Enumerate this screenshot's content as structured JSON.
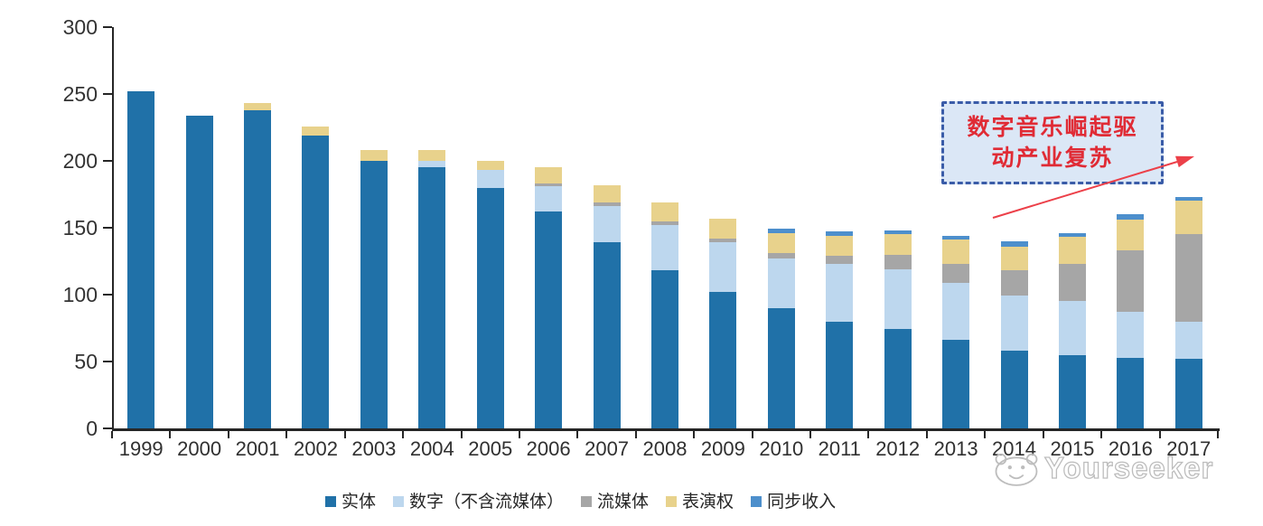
{
  "chart_data": {
    "type": "bar",
    "stacked": true,
    "title": "",
    "xlabel": "",
    "ylabel": "",
    "ylim": [
      0,
      300
    ],
    "yticks": [
      0,
      50,
      100,
      150,
      200,
      250,
      300
    ],
    "grid": false,
    "legend_position": "bottom",
    "categories": [
      "1999",
      "2000",
      "2001",
      "2002",
      "2003",
      "2004",
      "2005",
      "2006",
      "2007",
      "2008",
      "2009",
      "2010",
      "2011",
      "2012",
      "2013",
      "2014",
      "2015",
      "2016",
      "2017"
    ],
    "series": [
      {
        "key": "physical",
        "name": "实体",
        "color": "#2071a8",
        "values": [
          252,
          234,
          238,
          219,
          200,
          195,
          180,
          162,
          139,
          118,
          102,
          90,
          80,
          74,
          66,
          58,
          55,
          53,
          52
        ]
      },
      {
        "key": "digital-excl-streaming",
        "name": "数字（不含流媒体）",
        "color": "#bdd7ee",
        "values": [
          0,
          0,
          0,
          0,
          0,
          5,
          13,
          19,
          27,
          34,
          37,
          37,
          43,
          45,
          43,
          41,
          40,
          34,
          28
        ]
      },
      {
        "key": "streaming",
        "name": "流媒体",
        "color": "#a6a6a6",
        "values": [
          0,
          0,
          0,
          0,
          0,
          0,
          0,
          2,
          3,
          3,
          3,
          4,
          6,
          11,
          14,
          19,
          28,
          46,
          65
        ]
      },
      {
        "key": "performance-rights",
        "name": "表演权",
        "color": "#e8d28c",
        "values": [
          0,
          0,
          5,
          7,
          8,
          8,
          7,
          12,
          13,
          14,
          15,
          15,
          15,
          15,
          18,
          18,
          20,
          23,
          25
        ]
      },
      {
        "key": "sync-revenue",
        "name": "同步收入",
        "color": "#4d8fcc",
        "values": [
          0,
          0,
          0,
          0,
          0,
          0,
          0,
          0,
          0,
          0,
          0,
          3,
          3,
          3,
          3,
          4,
          3,
          4,
          3
        ]
      }
    ]
  },
  "annotation": {
    "line1": "数字音乐崛起驱",
    "line2": "动产业复苏",
    "text_color": "#e02b35",
    "box_fill": "#dbe7f6",
    "box_border": "#3a5ca8",
    "arrow_color": "#ec4049"
  },
  "watermark": {
    "text": "Yourseeker",
    "logo": "seeker-face-logo"
  },
  "axis_color": "#262626"
}
